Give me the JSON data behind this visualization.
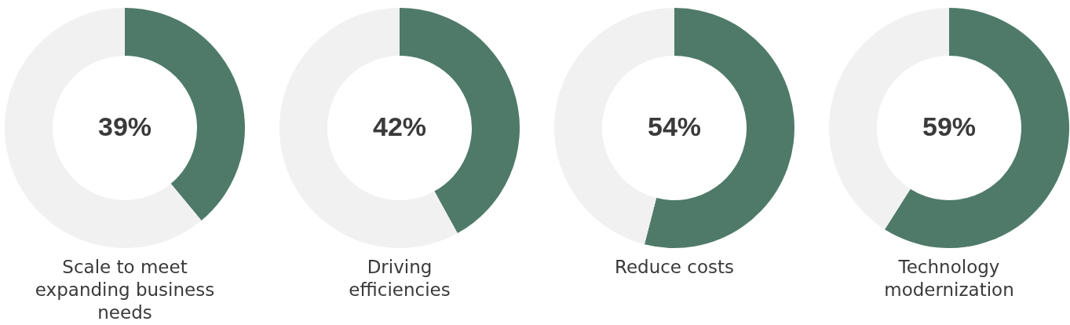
{
  "chart_data": [
    {
      "type": "donut",
      "title": "Scale to meet expanding business needs",
      "categories": [
        null,
        null
      ],
      "values": [
        39,
        61
      ],
      "colors": [
        "#4f7a6a",
        "#f1f1f1"
      ],
      "value_labels": [
        "39%",
        null
      ]
    },
    {
      "type": "donut",
      "title": "Driving efficiencies",
      "categories": [
        null,
        null
      ],
      "values": [
        42,
        58
      ],
      "colors": [
        "#4f7a6a",
        "#f1f1f1"
      ],
      "value_labels": [
        "42%",
        null
      ]
    },
    {
      "type": "donut",
      "title": "Reduce costs",
      "categories": [
        null,
        null
      ],
      "values": [
        54,
        46
      ],
      "colors": [
        "#4f7a6a",
        "#f1f1f1"
      ],
      "value_labels": [
        "54%",
        null
      ]
    },
    {
      "type": "donut",
      "title": "Technology modernization",
      "categories": [
        null,
        null
      ],
      "values": [
        59,
        41
      ],
      "colors": [
        "#4f7a6a",
        "#f1f1f1"
      ],
      "value_labels": [
        "59%",
        null
      ]
    }
  ]
}
